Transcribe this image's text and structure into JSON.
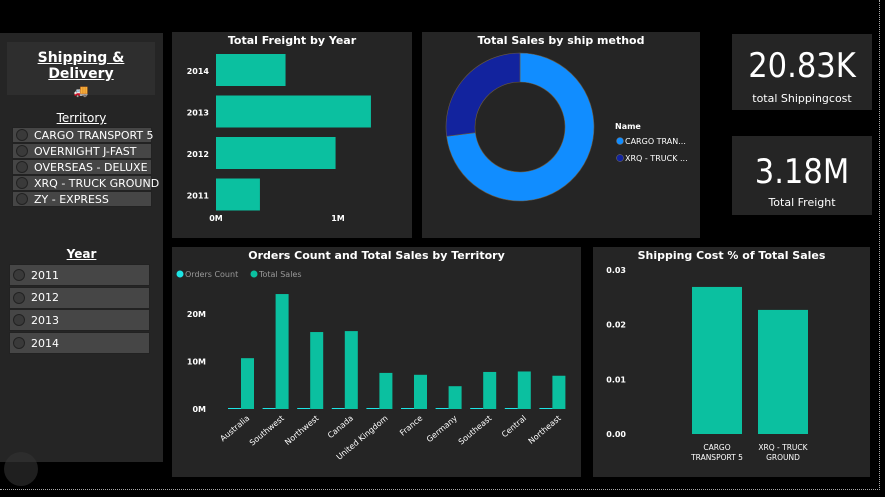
{
  "header": {
    "title": "Shipping & Delivery",
    "icon": "delivery-truck-icon"
  },
  "territory": {
    "label": "Territory",
    "items": [
      "CARGO TRANSPORT 5",
      "OVERNIGHT J-FAST",
      "OVERSEAS - DELUXE",
      "XRQ - TRUCK GROUND",
      "ZY - EXPRESS"
    ]
  },
  "year": {
    "label": "Year",
    "items": [
      "2011",
      "2012",
      "2013",
      "2014"
    ]
  },
  "kpis": [
    {
      "value": "20.83K",
      "label": "total Shippingcost"
    },
    {
      "value": "3.18M",
      "label": "Total Freight"
    }
  ],
  "colors": {
    "teal": "#0BC0A0",
    "light_blue": "#118DFF",
    "dark_blue": "#12239E",
    "panel": "#252525"
  },
  "chart_data": [
    {
      "type": "bar",
      "orientation": "horizontal",
      "title": "Total Freight by Year",
      "categories": [
        "2014",
        "2013",
        "2012",
        "2011"
      ],
      "values": [
        0.57,
        1.27,
        0.98,
        0.36
      ],
      "unit": "M",
      "xticks": [
        "0M",
        "1M"
      ],
      "xlim": [
        0,
        1.3
      ]
    },
    {
      "type": "pie",
      "donut": true,
      "title": "Total Sales by ship method",
      "legend_title": "Name",
      "legend_placement": "right",
      "labels": [
        "CARGO TRAN...",
        "XRQ - TRUCK ..."
      ],
      "values": [
        73,
        27
      ]
    },
    {
      "type": "bar",
      "title": "Orders Count and Total Sales by Territory",
      "legend_placement": "top-left",
      "categories": [
        "Australia",
        "Southwest",
        "Northwest",
        "Canada",
        "United Kingdom",
        "France",
        "Germany",
        "Southeast",
        "Central",
        "Northeast"
      ],
      "series": [
        {
          "name": "Orders Count",
          "values": [
            0.01,
            0.01,
            0.01,
            0.01,
            0.01,
            0.01,
            0.01,
            0.01,
            0.01,
            0.01
          ]
        },
        {
          "name": "Total Sales",
          "values": [
            10.7,
            24.2,
            16.2,
            16.4,
            7.6,
            7.2,
            4.8,
            7.8,
            7.9,
            7.0
          ]
        }
      ],
      "unit": "M",
      "yticks": [
        "0M",
        "10M",
        "20M"
      ],
      "ylim": [
        0,
        25
      ]
    },
    {
      "type": "bar",
      "title": "Shipping Cost % of Total Sales",
      "categories": [
        "CARGO TRANSPORT 5",
        "XRQ - TRUCK GROUND"
      ],
      "values": [
        0.0269,
        0.0227
      ],
      "yticks": [
        "0.00",
        "0.01",
        "0.02",
        "0.03"
      ],
      "ylim": [
        0,
        0.03
      ]
    }
  ]
}
